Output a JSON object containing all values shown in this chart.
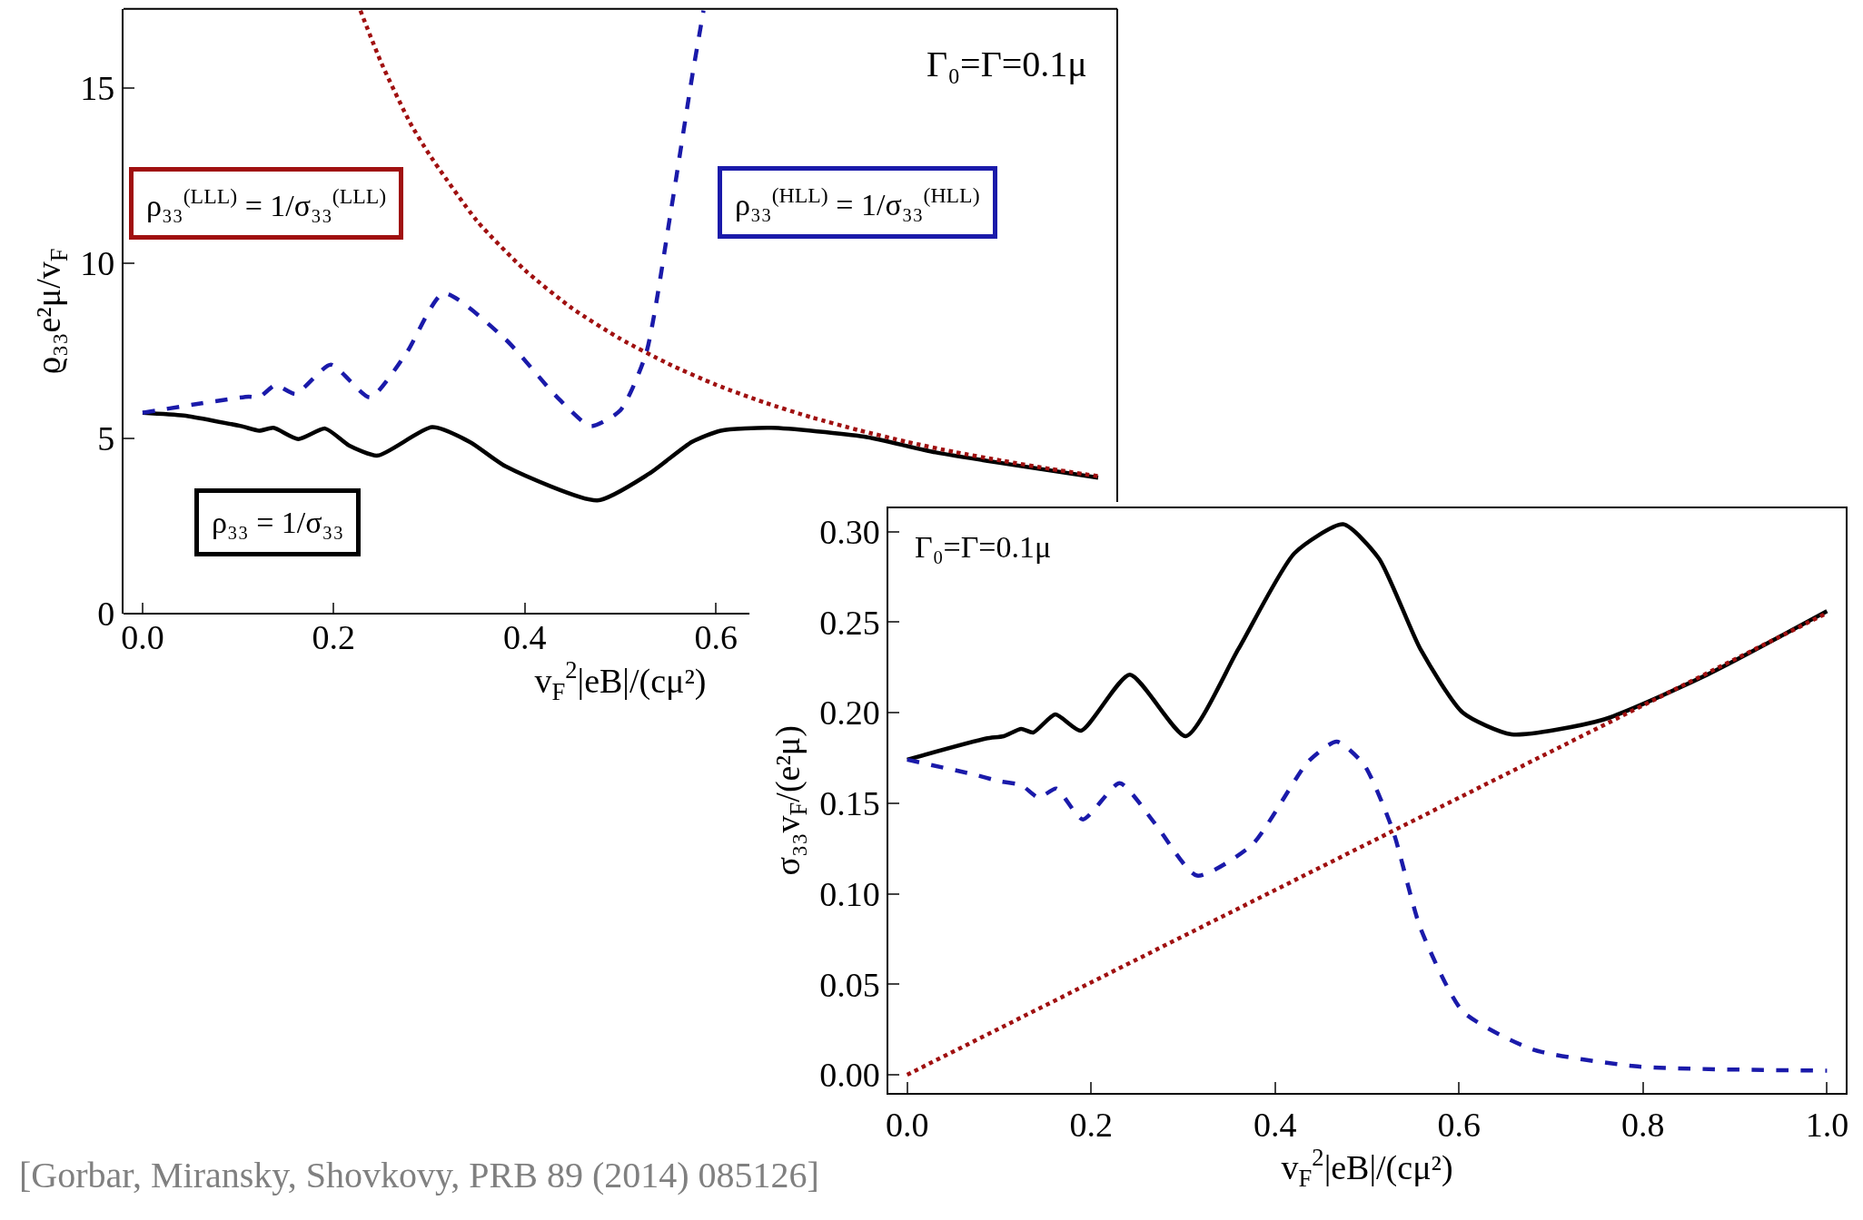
{
  "chart_data": [
    {
      "type": "line",
      "xlabel": "v$_{F}$$^{2}$|eB|/(cμ²)",
      "ylabel": "ϱ₃₃e²μ/v$_{F}$",
      "xlim": [
        -0.02,
        1.02
      ],
      "ylim": [
        0,
        17.25
      ],
      "xticks": [
        {
          "value": 0,
          "label": "0.0"
        },
        {
          "value": 0.2,
          "label": "0.2"
        },
        {
          "value": 0.4,
          "label": "0.4"
        },
        {
          "value": 0.6,
          "label": "0.6"
        }
      ],
      "yticks": [
        0,
        5,
        10,
        15
      ],
      "legend": false,
      "annotations": [
        "Γ₀=Γ=0.1μ",
        "[Gorbar, Miransky, Shovkovy, PRB 89 (2014) 085126]"
      ],
      "series": [
        {
          "name": "ρ₃₃ = 1/σ₃₃",
          "color": "#000000",
          "line_style": "solid",
          "x": [
            0,
            0.043,
            0.103,
            0.122,
            0.137,
            0.163,
            0.191,
            0.216,
            0.246,
            0.303,
            0.343,
            0.38,
            0.476,
            0.53,
            0.575,
            0.605,
            0.658,
            0.755,
            0.83,
            1.0
          ],
          "values": [
            5.73,
            5.65,
            5.35,
            5.22,
            5.3,
            4.98,
            5.28,
            4.8,
            4.51,
            5.32,
            4.89,
            4.2,
            3.23,
            3.99,
            4.9,
            5.22,
            5.3,
            5.05,
            4.6,
            3.88
          ]
        },
        {
          "name": "ρ₃₃$^{(HLL)}$ = 1/σ₃₃$^{(HLL)}$",
          "color": "#1a1aaa",
          "line_style": "dashed",
          "x": [
            0,
            0.111,
            0.122,
            0.139,
            0.16,
            0.197,
            0.238,
            0.276,
            0.315,
            0.38,
            0.433,
            0.469,
            0.5,
            0.527,
            0.553,
            0.575,
            0.587
          ],
          "values": [
            5.73,
            6.19,
            6.17,
            6.52,
            6.27,
            7.1,
            6.17,
            7.43,
            9.14,
            7.82,
            6.2,
            5.35,
            5.8,
            7.43,
            11.5,
            15.3,
            17.2
          ]
        },
        {
          "name": "ρ₃₃$^{(LLL)}$ = 1/σ₃₃$^{(LLL)}$",
          "color": "#a01010",
          "line_style": "dotted",
          "x": [
            0.228,
            0.25,
            0.28,
            0.3,
            0.35,
            0.4,
            0.45,
            0.5,
            0.55,
            0.6,
            0.65,
            0.7,
            0.75,
            0.8,
            0.85,
            0.9,
            0.95,
            1.0
          ],
          "values": [
            17.2,
            15.7,
            14.0,
            13.1,
            11.2,
            9.8,
            8.7,
            7.84,
            7.13,
            6.53,
            6.03,
            5.6,
            5.23,
            4.9,
            4.61,
            4.36,
            4.13,
            3.92
          ]
        }
      ]
    },
    {
      "type": "line",
      "xlabel": "v$_{F}$$^{2}$|eB|/(cμ²)",
      "ylabel": "σ₃₃v$_{F}$/(e²μ)",
      "xlim": [
        -0.02,
        1.02
      ],
      "ylim": [
        -0.01,
        0.313
      ],
      "xticks": [
        {
          "value": 0,
          "label": "0.0"
        },
        {
          "value": 0.2,
          "label": "0.2"
        },
        {
          "value": 0.4,
          "label": "0.4"
        },
        {
          "value": 0.6,
          "label": "0.6"
        },
        {
          "value": 0.8,
          "label": "0.8"
        },
        {
          "value": 1.0,
          "label": "1.0"
        }
      ],
      "yticks": [
        {
          "value": 0,
          "label": "0.00"
        },
        {
          "value": 0.05,
          "label": "0.05"
        },
        {
          "value": 0.1,
          "label": "0.10"
        },
        {
          "value": 0.15,
          "label": "0.15"
        },
        {
          "value": 0.2,
          "label": "0.20"
        },
        {
          "value": 0.25,
          "label": "0.25"
        },
        {
          "value": 0.3,
          "label": "0.30"
        }
      ],
      "legend": false,
      "annotations": [
        "Γ₀=Γ=0.1μ"
      ],
      "series": [
        {
          "color": "#000000",
          "line_style": "solid",
          "x": [
            0,
            0.086,
            0.105,
            0.124,
            0.137,
            0.161,
            0.189,
            0.242,
            0.303,
            0.36,
            0.421,
            0.474,
            0.513,
            0.558,
            0.604,
            0.657,
            0.756,
            0.87,
            1.0
          ],
          "values": [
            0.174,
            0.1857,
            0.187,
            0.191,
            0.189,
            0.199,
            0.19,
            0.221,
            0.187,
            0.235,
            0.288,
            0.304,
            0.285,
            0.235,
            0.2,
            0.188,
            0.196,
            0.221,
            0.256
          ]
        },
        {
          "color": "#1a1aaa",
          "line_style": "dashed",
          "x": [
            0,
            0.071,
            0.101,
            0.124,
            0.143,
            0.162,
            0.191,
            0.231,
            0.269,
            0.315,
            0.375,
            0.436,
            0.467,
            0.497,
            0.528,
            0.558,
            0.604,
            0.68,
            0.794,
            1.0
          ],
          "values": [
            0.174,
            0.166,
            0.162,
            0.16,
            0.153,
            0.158,
            0.141,
            0.161,
            0.139,
            0.11,
            0.127,
            0.173,
            0.184,
            0.171,
            0.135,
            0.081,
            0.035,
            0.014,
            0.0046,
            0.0023
          ]
        },
        {
          "color": "#a01010",
          "line_style": "dotted",
          "x": [
            0,
            1.0
          ],
          "values": [
            0,
            0.255
          ]
        }
      ]
    }
  ]
}
